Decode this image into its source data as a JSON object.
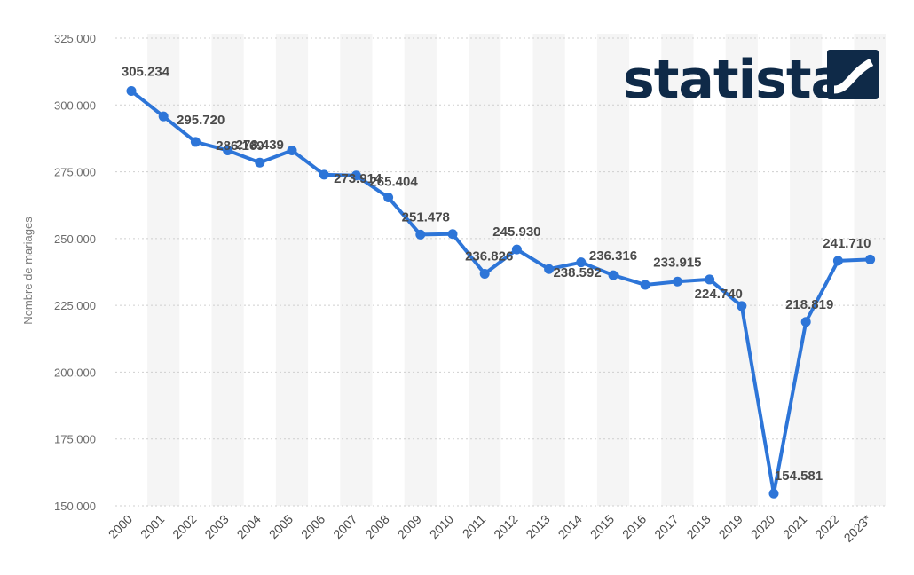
{
  "brand": {
    "name": "statista",
    "color": "#0f2a48"
  },
  "chart_data": {
    "type": "line",
    "title": "",
    "xlabel": "",
    "ylabel": "Nombre de mariages",
    "ylim": [
      150000,
      325000
    ],
    "yticks": [
      150000,
      175000,
      200000,
      225000,
      250000,
      275000,
      300000,
      325000
    ],
    "ytick_labels": [
      "150.000",
      "175.000",
      "200.000",
      "225.000",
      "250.000",
      "275.000",
      "300.000",
      "325.000"
    ],
    "grid": true,
    "legend": "none",
    "line_color": "#2d75d8",
    "categories": [
      "2000",
      "2001",
      "2002",
      "2003",
      "2004",
      "2005",
      "2006",
      "2007",
      "2008",
      "2009",
      "2010",
      "2011",
      "2012",
      "2013",
      "2014",
      "2015",
      "2016",
      "2017",
      "2018",
      "2019",
      "2020",
      "2021",
      "2022",
      "2023*"
    ],
    "series": [
      {
        "values": [
          305234,
          295720,
          286169,
          283000,
          278439,
          283000,
          273914,
          273600,
          265404,
          251478,
          251700,
          236826,
          245930,
          238592,
          241100,
          236316,
          232700,
          233915,
          234700,
          224740,
          154581,
          218819,
          241710,
          242200
        ],
        "labels": [
          "305.234",
          "295.720",
          "286.169",
          "",
          "278.439",
          "",
          "273.914",
          "",
          "265.404",
          "251.478",
          "",
          "236.826",
          "245.930",
          "238.592",
          "",
          "236.316",
          "",
          "233.915",
          "",
          "224.740",
          "154.581",
          "218.819",
          "241.710",
          ""
        ]
      }
    ]
  }
}
